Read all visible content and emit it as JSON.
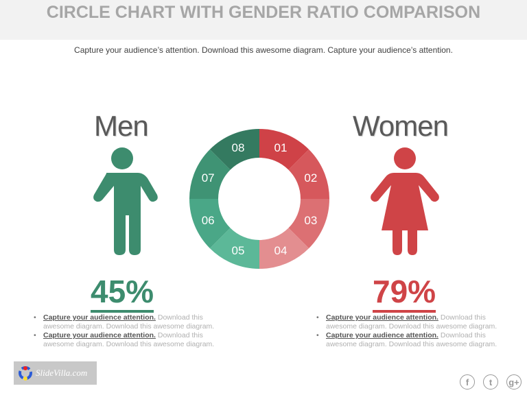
{
  "title": "CIRCLE CHART WITH GENDER RATIO COMPARISON",
  "subtitle": "Capture your audience’s attention. Download this awesome diagram. Capture your audience’s attention.",
  "men": {
    "label": "Men",
    "percent": "45%",
    "color": "#3d8c6e",
    "bullets": [
      {
        "bold": "Capture your audience attention.",
        "text": " Download this awesome diagram. Download this awesome diagram."
      },
      {
        "bold": " Capture your audience attention.",
        "text": " Download this awesome diagram. Download this awesome diagram."
      }
    ]
  },
  "women": {
    "label": "Women",
    "percent": "79%",
    "color": "#cf4447",
    "bullets": [
      {
        "bold": "Capture your audience attention.",
        "text": " Download this awesome diagram. Download this awesome diagram."
      },
      {
        "bold": "Capture your audience attention.",
        "text": " Download this awesome diagram. Download this awesome diagram."
      }
    ]
  },
  "chart_data": {
    "type": "donut",
    "segments": [
      {
        "label": "01",
        "color": "#cf4247"
      },
      {
        "label": "02",
        "color": "#d6585c"
      },
      {
        "label": "03",
        "color": "#dc7073"
      },
      {
        "label": "04",
        "color": "#e38e90"
      },
      {
        "label": "05",
        "color": "#5cb898"
      },
      {
        "label": "06",
        "color": "#4aa787"
      },
      {
        "label": "07",
        "color": "#3f9374"
      },
      {
        "label": "08",
        "color": "#347a60"
      }
    ]
  },
  "logo": {
    "text": "SlideVilla.com"
  },
  "social": {
    "icons": [
      "facebook-icon",
      "twitter-icon",
      "google-plus-icon"
    ],
    "labels": [
      "f",
      "t",
      "g+"
    ]
  }
}
